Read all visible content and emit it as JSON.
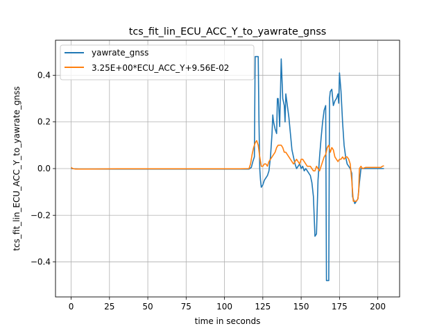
{
  "chart_data": {
    "type": "line",
    "title": "tcs_fit_lin_ECU_ACC_Y_to_yawrate_gnss",
    "xlabel": "time in seconds",
    "ylabel": "tcs_fit_lin_ECU_ACC_Y_to_yawrate_gnss",
    "xlim": [
      -10.2,
      214.2
    ],
    "ylim": [
      -0.55,
      0.55
    ],
    "xticks": [
      0,
      25,
      50,
      75,
      100,
      125,
      150,
      175,
      200
    ],
    "xtick_labels": [
      "0",
      "25",
      "50",
      "75",
      "100",
      "125",
      "150",
      "175",
      "200"
    ],
    "yticks": [
      -0.4,
      -0.2,
      0.0,
      0.2,
      0.4
    ],
    "ytick_labels": [
      "−0.4",
      "−0.2",
      "0.0",
      "0.2",
      "0.4"
    ],
    "grid": true,
    "legend_position": "top-left",
    "series": [
      {
        "name": "yawrate_gnss",
        "color": "#1f77b4",
        "points": [
          [
            0,
            0.0
          ],
          [
            5,
            -0.002
          ],
          [
            20,
            -0.002
          ],
          [
            50,
            -0.002
          ],
          [
            80,
            -0.002
          ],
          [
            100,
            -0.002
          ],
          [
            116,
            -0.002
          ],
          [
            117.5,
            0.005
          ],
          [
            118.5,
            0.03
          ],
          [
            119.5,
            0.05
          ],
          [
            120,
            0.48
          ],
          [
            121,
            0.48
          ],
          [
            122,
            0.48
          ],
          [
            122.5,
            0.2
          ],
          [
            123,
            0.0
          ],
          [
            123.5,
            -0.05
          ],
          [
            124,
            -0.08
          ],
          [
            125,
            -0.07
          ],
          [
            126,
            -0.05
          ],
          [
            127,
            -0.04
          ],
          [
            128,
            -0.03
          ],
          [
            129,
            -0.01
          ],
          [
            130,
            0.05
          ],
          [
            131,
            0.15
          ],
          [
            131.5,
            0.23
          ],
          [
            132,
            0.2
          ],
          [
            133,
            0.17
          ],
          [
            134,
            0.15
          ],
          [
            134.5,
            0.3
          ],
          [
            135,
            0.3
          ],
          [
            135.5,
            0.25
          ],
          [
            136,
            0.18
          ],
          [
            137,
            0.47
          ],
          [
            138,
            0.3
          ],
          [
            139,
            0.27
          ],
          [
            139.5,
            0.2
          ],
          [
            140,
            0.32
          ],
          [
            141,
            0.27
          ],
          [
            142,
            0.22
          ],
          [
            143,
            0.15
          ],
          [
            144,
            0.08
          ],
          [
            145,
            0.05
          ],
          [
            146,
            0.02
          ],
          [
            147,
            0.0
          ],
          [
            148,
            0.01
          ],
          [
            149,
            0.02
          ],
          [
            150,
            0.0
          ],
          [
            151,
            0.01
          ],
          [
            152,
            -0.01
          ],
          [
            153,
            0.0
          ],
          [
            154,
            -0.01
          ],
          [
            155,
            -0.02
          ],
          [
            156,
            -0.03
          ],
          [
            157,
            -0.06
          ],
          [
            158,
            -0.12
          ],
          [
            159,
            -0.29
          ],
          [
            160,
            -0.28
          ],
          [
            161,
            -0.05
          ],
          [
            162,
            0.05
          ],
          [
            163,
            0.13
          ],
          [
            164,
            0.2
          ],
          [
            165,
            0.25
          ],
          [
            166,
            0.27
          ],
          [
            166.5,
            -0.48
          ],
          [
            167,
            -0.48
          ],
          [
            168,
            -0.48
          ],
          [
            168.5,
            0.3
          ],
          [
            169,
            0.33
          ],
          [
            170,
            0.34
          ],
          [
            171,
            0.27
          ],
          [
            172,
            0.29
          ],
          [
            173,
            0.3
          ],
          [
            174,
            0.32
          ],
          [
            174.5,
            0.28
          ],
          [
            175,
            0.41
          ],
          [
            176,
            0.33
          ],
          [
            177,
            0.2
          ],
          [
            178,
            0.1
          ],
          [
            179,
            0.05
          ],
          [
            180,
            0.02
          ],
          [
            181,
            0.01
          ],
          [
            182,
            0.0
          ],
          [
            183,
            -0.02
          ],
          [
            183.5,
            -0.12
          ],
          [
            184,
            -0.13
          ],
          [
            185,
            -0.15
          ],
          [
            186,
            -0.14
          ],
          [
            187,
            -0.13
          ],
          [
            188,
            -0.06
          ],
          [
            189,
            0.0
          ],
          [
            190,
            0.0
          ],
          [
            195,
            0.0
          ],
          [
            200,
            0.0
          ],
          [
            204,
            0.0
          ]
        ]
      },
      {
        "name": "3.25E+00*ECU_ACC_Y+9.56E-02",
        "color": "#ff7f0e",
        "points": [
          [
            0,
            0.005
          ],
          [
            1,
            0.0
          ],
          [
            3,
            -0.002
          ],
          [
            10,
            -0.002
          ],
          [
            30,
            -0.001
          ],
          [
            50,
            -0.001
          ],
          [
            70,
            -0.001
          ],
          [
            90,
            -0.001
          ],
          [
            110,
            -0.001
          ],
          [
            116,
            0.0
          ],
          [
            117,
            0.02
          ],
          [
            118,
            0.06
          ],
          [
            119,
            0.09
          ],
          [
            120,
            0.11
          ],
          [
            121,
            0.12
          ],
          [
            122,
            0.1
          ],
          [
            123,
            0.05
          ],
          [
            124,
            0.01
          ],
          [
            125,
            0.01
          ],
          [
            126,
            0.02
          ],
          [
            127,
            0.02
          ],
          [
            128,
            0.01
          ],
          [
            129,
            0.03
          ],
          [
            130,
            0.04
          ],
          [
            131,
            0.05
          ],
          [
            132,
            0.06
          ],
          [
            133,
            0.07
          ],
          [
            134,
            0.09
          ],
          [
            135,
            0.1
          ],
          [
            136,
            0.1
          ],
          [
            137,
            0.1
          ],
          [
            138,
            0.09
          ],
          [
            139,
            0.07
          ],
          [
            140,
            0.07
          ],
          [
            141,
            0.06
          ],
          [
            142,
            0.05
          ],
          [
            143,
            0.04
          ],
          [
            144,
            0.03
          ],
          [
            145,
            0.02
          ],
          [
            146,
            0.03
          ],
          [
            147,
            0.04
          ],
          [
            148,
            0.03
          ],
          [
            149,
            0.02
          ],
          [
            150,
            0.04
          ],
          [
            151,
            0.04
          ],
          [
            152,
            0.03
          ],
          [
            153,
            0.02
          ],
          [
            154,
            0.01
          ],
          [
            155,
            0.01
          ],
          [
            156,
            0.01
          ],
          [
            157,
            0.0
          ],
          [
            158,
            -0.01
          ],
          [
            159,
            -0.01
          ],
          [
            160,
            0.01
          ],
          [
            161,
            0.0
          ],
          [
            162,
            -0.01
          ],
          [
            163,
            0.01
          ],
          [
            164,
            0.03
          ],
          [
            165,
            0.05
          ],
          [
            166,
            0.06
          ],
          [
            167,
            0.09
          ],
          [
            168,
            0.1
          ],
          [
            169,
            0.07
          ],
          [
            170,
            0.09
          ],
          [
            171,
            0.08
          ],
          [
            172,
            0.05
          ],
          [
            173,
            0.04
          ],
          [
            174,
            0.03
          ],
          [
            175,
            0.04
          ],
          [
            176,
            0.04
          ],
          [
            177,
            0.05
          ],
          [
            178,
            0.04
          ],
          [
            179,
            0.05
          ],
          [
            180,
            0.05
          ],
          [
            181,
            0.04
          ],
          [
            182,
            0.02
          ],
          [
            183,
            -0.05
          ],
          [
            184,
            -0.14
          ],
          [
            185,
            -0.14
          ],
          [
            186,
            -0.14
          ],
          [
            187,
            -0.13
          ],
          [
            187.5,
            -0.1
          ],
          [
            188,
            0.0
          ],
          [
            189,
            0.01
          ],
          [
            190,
            0.0
          ],
          [
            192,
            0.005
          ],
          [
            195,
            0.005
          ],
          [
            198,
            0.005
          ],
          [
            200,
            0.005
          ],
          [
            202,
            0.005
          ],
          [
            203,
            0.01
          ],
          [
            204,
            0.012
          ]
        ]
      }
    ]
  }
}
